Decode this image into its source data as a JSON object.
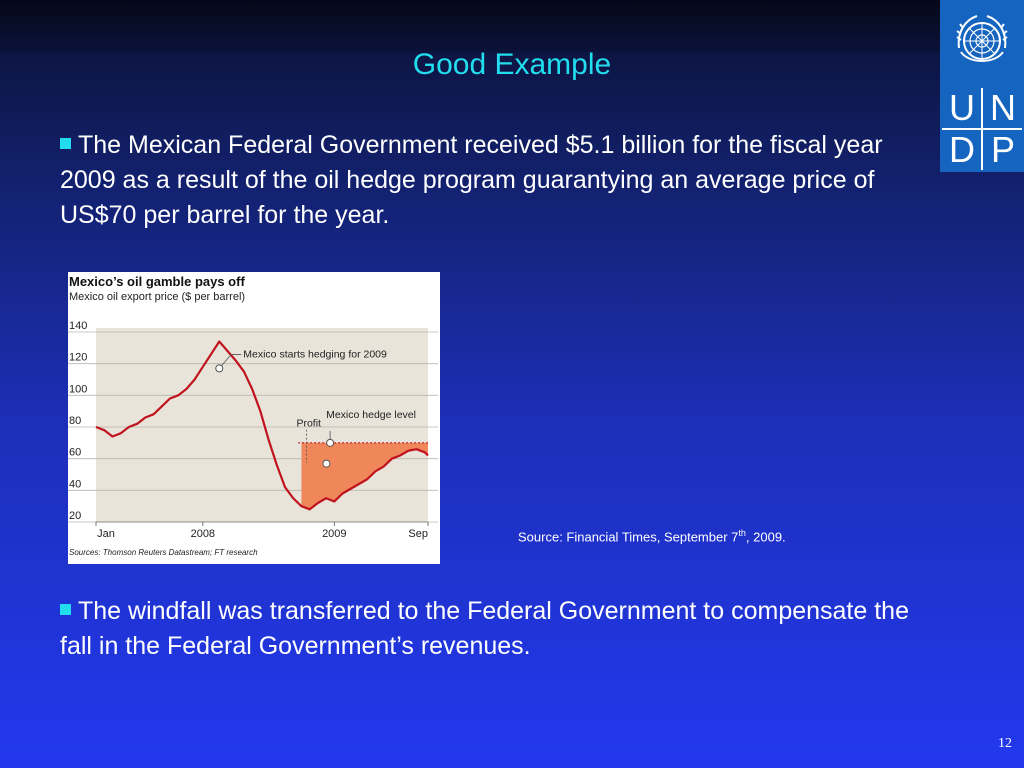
{
  "slide": {
    "title": "Good Example",
    "bullet1": "The Mexican Federal Government received $5.1 billion for the fiscal year 2009 as a result of the oil hedge program guarantying an average price of US$70 per barrel for the year.",
    "bullet2": "The windfall was transferred to the Federal Government to compensate the fall in the Federal Government’s revenues.",
    "source_prefix": "Source: Financial Times, September 7",
    "source_sup": "th",
    "source_suffix": ", 2009.",
    "page_number": "12"
  },
  "logo": {
    "letters": [
      "U",
      "N",
      "D",
      "P"
    ]
  },
  "colors": {
    "accent": "#22ddee",
    "logo_blue": "#1565c0",
    "plot_bg": "#e8e4da",
    "line": "#c0131e",
    "profit_fill": "#f0875a",
    "hedge_line": "#c0131e"
  },
  "chart_data": {
    "type": "line",
    "title": "Mexico’s oil gamble pays off",
    "subtitle": "Mexico oil export price  ($ per barrel)",
    "source": "Sources: Thomson Reuters Datastream; FT research",
    "ylim": [
      20,
      140
    ],
    "yticks": [
      20,
      40,
      60,
      80,
      100,
      120,
      140
    ],
    "xlim": [
      0,
      20.2
    ],
    "xticks": [
      {
        "x": 0,
        "label": "Jan"
      },
      {
        "x": 6.5,
        "label": "2008"
      },
      {
        "x": 14.5,
        "label": "2009"
      },
      {
        "x": 20.2,
        "label": "Sep"
      }
    ],
    "grid": true,
    "series": [
      {
        "x": [
          0,
          0.5,
          1,
          1.5,
          2,
          2.5,
          3,
          3.5,
          4,
          4.5,
          5,
          5.5,
          6,
          6.5,
          7,
          7.5,
          8,
          8.5,
          9,
          9.5,
          10,
          10.5,
          11,
          11.5,
          12,
          12.5,
          13,
          13.5,
          14,
          14.5,
          15,
          15.5,
          16,
          16.5,
          17,
          17.5,
          18,
          18.5,
          19,
          19.5,
          20,
          20.2
        ],
        "values": [
          80,
          78,
          74,
          76,
          80,
          82,
          86,
          88,
          93,
          98,
          100,
          104,
          110,
          118,
          126,
          134,
          128,
          122,
          115,
          104,
          90,
          72,
          56,
          42,
          35,
          30,
          28,
          32,
          35,
          33,
          38,
          41,
          44,
          47,
          52,
          55,
          60,
          62,
          65,
          66,
          64,
          62
        ]
      }
    ],
    "annotations": [
      {
        "label": "Mexico starts hedging for 2009",
        "x": 7.5,
        "y": 117
      },
      {
        "label": "Profit",
        "x": 12.5,
        "y": 55
      },
      {
        "label": "Mexico hedge level",
        "x": 14,
        "y": 70
      }
    ],
    "hedge_level": 70,
    "profit_region": {
      "x_start": 12.3,
      "x_end": 20.2
    }
  }
}
